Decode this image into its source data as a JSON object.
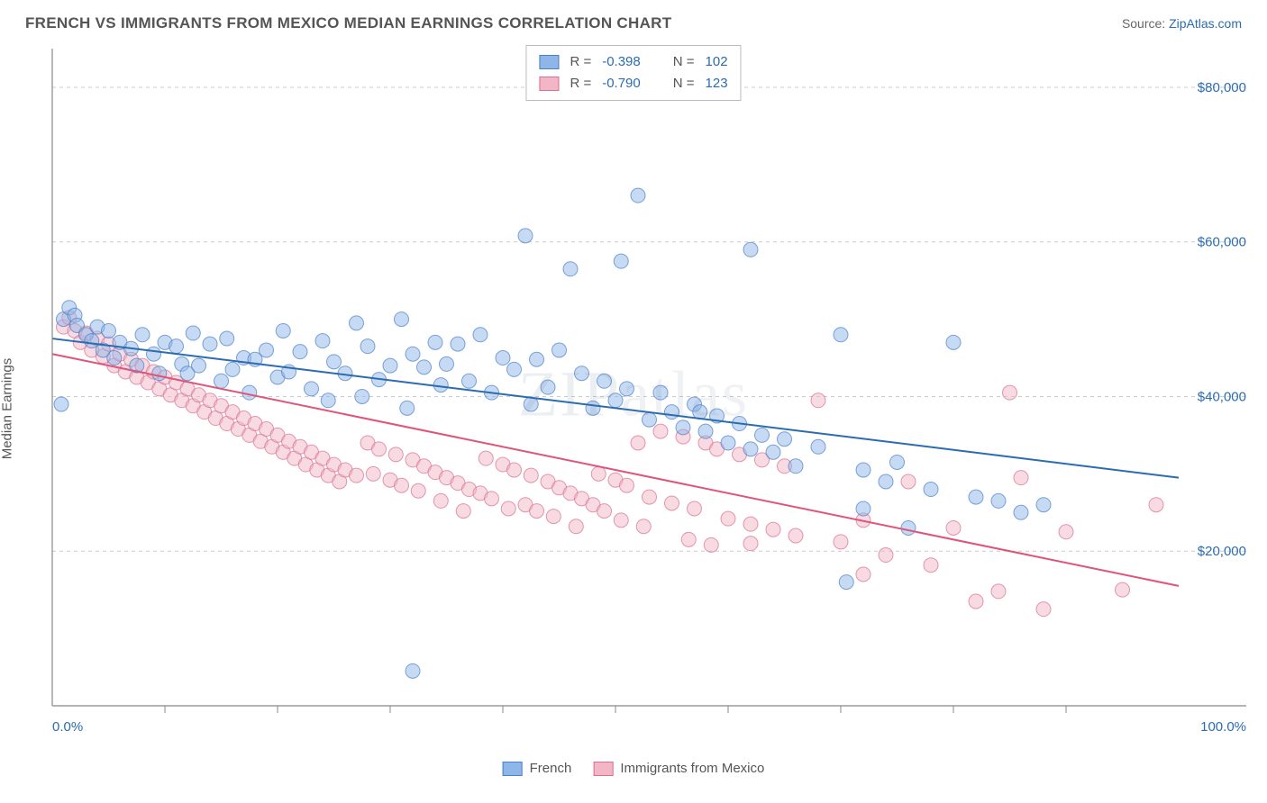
{
  "header": {
    "title": "FRENCH VS IMMIGRANTS FROM MEXICO MEDIAN EARNINGS CORRELATION CHART",
    "source_label": "Source:",
    "source_name": "ZipAtlas.com"
  },
  "watermark": {
    "part1": "ZIP",
    "part2": "atlas"
  },
  "chart": {
    "type": "scatter",
    "xlabel": null,
    "ylabel": "Median Earnings",
    "xlim": [
      0,
      100
    ],
    "ylim": [
      0,
      85000
    ],
    "x_axis_labels": {
      "left": "0.0%",
      "right": "100.0%"
    },
    "x_ticks_minor": [
      10,
      20,
      30,
      40,
      50,
      60,
      70,
      80,
      90
    ],
    "y_gridlines": [
      20000,
      40000,
      60000,
      80000
    ],
    "y_tick_labels": [
      "$20,000",
      "$40,000",
      "$60,000",
      "$80,000"
    ],
    "background_color": "#ffffff",
    "grid_color": "#cccccc",
    "axis_color": "#888888",
    "tick_label_color": "#2b6cb0",
    "axis_label_color": "#555555",
    "title_fontsize": 17,
    "label_fontsize": 15,
    "tick_fontsize": 15,
    "marker_radius": 8,
    "marker_opacity": 0.5,
    "line_width": 2,
    "series": [
      {
        "id": "french",
        "label": "French",
        "fill_color": "#8fb6e8",
        "stroke_color": "#4a7fc9",
        "line_color": "#2b6cb0",
        "R": "-0.398",
        "N": "102",
        "trend": {
          "x1": 0,
          "y1": 47500,
          "x2": 100,
          "y2": 29500
        },
        "points": [
          [
            1,
            50000
          ],
          [
            1.5,
            51500
          ],
          [
            2,
            50500
          ],
          [
            2.2,
            49200
          ],
          [
            0.8,
            39000
          ],
          [
            3,
            48000
          ],
          [
            3.5,
            47200
          ],
          [
            4,
            49000
          ],
          [
            4.5,
            46000
          ],
          [
            5,
            48500
          ],
          [
            5.5,
            45000
          ],
          [
            6,
            47000
          ],
          [
            7,
            46200
          ],
          [
            7.5,
            44000
          ],
          [
            8,
            48000
          ],
          [
            9,
            45500
          ],
          [
            9.5,
            43000
          ],
          [
            10,
            47000
          ],
          [
            11,
            46500
          ],
          [
            11.5,
            44200
          ],
          [
            12,
            43000
          ],
          [
            12.5,
            48200
          ],
          [
            13,
            44000
          ],
          [
            14,
            46800
          ],
          [
            15,
            42000
          ],
          [
            15.5,
            47500
          ],
          [
            16,
            43500
          ],
          [
            17,
            45000
          ],
          [
            17.5,
            40500
          ],
          [
            18,
            44800
          ],
          [
            19,
            46000
          ],
          [
            20,
            42500
          ],
          [
            20.5,
            48500
          ],
          [
            21,
            43200
          ],
          [
            22,
            45800
          ],
          [
            23,
            41000
          ],
          [
            24,
            47200
          ],
          [
            24.5,
            39500
          ],
          [
            25,
            44500
          ],
          [
            26,
            43000
          ],
          [
            27,
            49500
          ],
          [
            27.5,
            40000
          ],
          [
            28,
            46500
          ],
          [
            29,
            42200
          ],
          [
            30,
            44000
          ],
          [
            31,
            50000
          ],
          [
            31.5,
            38500
          ],
          [
            32,
            45500
          ],
          [
            33,
            43800
          ],
          [
            34,
            47000
          ],
          [
            34.5,
            41500
          ],
          [
            35,
            44200
          ],
          [
            36,
            46800
          ],
          [
            37,
            42000
          ],
          [
            38,
            48000
          ],
          [
            32,
            4500
          ],
          [
            39,
            40500
          ],
          [
            40,
            45000
          ],
          [
            41,
            43500
          ],
          [
            42,
            60800
          ],
          [
            42.5,
            39000
          ],
          [
            43,
            44800
          ],
          [
            44,
            41200
          ],
          [
            45,
            46000
          ],
          [
            46,
            56500
          ],
          [
            47,
            43000
          ],
          [
            48,
            38500
          ],
          [
            49,
            42000
          ],
          [
            50,
            39500
          ],
          [
            50.5,
            57500
          ],
          [
            51,
            41000
          ],
          [
            52,
            66000
          ],
          [
            53,
            37000
          ],
          [
            54,
            40500
          ],
          [
            55,
            38000
          ],
          [
            56,
            36000
          ],
          [
            57,
            39000
          ],
          [
            57.5,
            38000
          ],
          [
            58,
            35500
          ],
          [
            59,
            37500
          ],
          [
            60,
            34000
          ],
          [
            61,
            36500
          ],
          [
            62,
            33200
          ],
          [
            63,
            35000
          ],
          [
            64,
            32800
          ],
          [
            65,
            34500
          ],
          [
            66,
            31000
          ],
          [
            68,
            33500
          ],
          [
            70,
            48000
          ],
          [
            70.5,
            16000
          ],
          [
            72,
            30500
          ],
          [
            62,
            59000
          ],
          [
            74,
            29000
          ],
          [
            75,
            31500
          ],
          [
            76,
            23000
          ],
          [
            78,
            28000
          ],
          [
            80,
            47000
          ],
          [
            82,
            27000
          ],
          [
            84,
            26500
          ],
          [
            86,
            25000
          ],
          [
            88,
            26000
          ],
          [
            72,
            25500
          ]
        ]
      },
      {
        "id": "mexico",
        "label": "Immigrants from Mexico",
        "fill_color": "#f2b6c6",
        "stroke_color": "#d96f8e",
        "line_color": "#e0547a",
        "R": "-0.790",
        "N": "123",
        "trend": {
          "x1": 0,
          "y1": 45500,
          "x2": 100,
          "y2": 15500
        },
        "points": [
          [
            1,
            49000
          ],
          [
            1.5,
            50200
          ],
          [
            2,
            48500
          ],
          [
            2.5,
            47000
          ],
          [
            3,
            48200
          ],
          [
            3.5,
            46000
          ],
          [
            4,
            47500
          ],
          [
            4.5,
            45200
          ],
          [
            5,
            46800
          ],
          [
            5.5,
            44000
          ],
          [
            6,
            45500
          ],
          [
            6.5,
            43200
          ],
          [
            7,
            44800
          ],
          [
            7.5,
            42500
          ],
          [
            8,
            44000
          ],
          [
            8.5,
            41800
          ],
          [
            9,
            43200
          ],
          [
            9.5,
            41000
          ],
          [
            10,
            42500
          ],
          [
            10.5,
            40200
          ],
          [
            11,
            41800
          ],
          [
            11.5,
            39500
          ],
          [
            12,
            41000
          ],
          [
            12.5,
            38800
          ],
          [
            13,
            40200
          ],
          [
            13.5,
            38000
          ],
          [
            14,
            39500
          ],
          [
            14.5,
            37200
          ],
          [
            15,
            38800
          ],
          [
            15.5,
            36500
          ],
          [
            16,
            38000
          ],
          [
            16.5,
            35800
          ],
          [
            17,
            37200
          ],
          [
            17.5,
            35000
          ],
          [
            18,
            36500
          ],
          [
            18.5,
            34200
          ],
          [
            19,
            35800
          ],
          [
            19.5,
            33500
          ],
          [
            20,
            35000
          ],
          [
            20.5,
            32800
          ],
          [
            21,
            34200
          ],
          [
            21.5,
            32000
          ],
          [
            22,
            33500
          ],
          [
            22.5,
            31200
          ],
          [
            23,
            32800
          ],
          [
            23.5,
            30500
          ],
          [
            24,
            32000
          ],
          [
            24.5,
            29800
          ],
          [
            25,
            31200
          ],
          [
            25.5,
            29000
          ],
          [
            26,
            30500
          ],
          [
            27,
            29800
          ],
          [
            28,
            34000
          ],
          [
            28.5,
            30000
          ],
          [
            29,
            33200
          ],
          [
            30,
            29200
          ],
          [
            30.5,
            32500
          ],
          [
            31,
            28500
          ],
          [
            32,
            31800
          ],
          [
            32.5,
            27800
          ],
          [
            33,
            31000
          ],
          [
            34,
            30200
          ],
          [
            34.5,
            26500
          ],
          [
            35,
            29500
          ],
          [
            36,
            28800
          ],
          [
            36.5,
            25200
          ],
          [
            37,
            28000
          ],
          [
            38,
            27500
          ],
          [
            38.5,
            32000
          ],
          [
            39,
            26800
          ],
          [
            40,
            31200
          ],
          [
            40.5,
            25500
          ],
          [
            41,
            30500
          ],
          [
            42,
            26000
          ],
          [
            42.5,
            29800
          ],
          [
            43,
            25200
          ],
          [
            44,
            29000
          ],
          [
            44.5,
            24500
          ],
          [
            45,
            28200
          ],
          [
            46,
            27500
          ],
          [
            46.5,
            23200
          ],
          [
            47,
            26800
          ],
          [
            48,
            26000
          ],
          [
            48.5,
            30000
          ],
          [
            49,
            25200
          ],
          [
            50,
            29200
          ],
          [
            50.5,
            24000
          ],
          [
            51,
            28500
          ],
          [
            52,
            34000
          ],
          [
            52.5,
            23200
          ],
          [
            53,
            27000
          ],
          [
            54,
            35500
          ],
          [
            55,
            26200
          ],
          [
            56,
            34800
          ],
          [
            56.5,
            21500
          ],
          [
            57,
            25500
          ],
          [
            58,
            34000
          ],
          [
            58.5,
            20800
          ],
          [
            59,
            33200
          ],
          [
            60,
            24200
          ],
          [
            61,
            32500
          ],
          [
            62,
            23500
          ],
          [
            63,
            31800
          ],
          [
            64,
            22800
          ],
          [
            65,
            31000
          ],
          [
            66,
            22000
          ],
          [
            68,
            39500
          ],
          [
            70,
            21200
          ],
          [
            72,
            24000
          ],
          [
            74,
            19500
          ],
          [
            76,
            29000
          ],
          [
            78,
            18200
          ],
          [
            80,
            23000
          ],
          [
            82,
            13500
          ],
          [
            84,
            14800
          ],
          [
            86,
            29500
          ],
          [
            88,
            12500
          ],
          [
            90,
            22500
          ],
          [
            95,
            15000
          ],
          [
            98,
            26000
          ],
          [
            85,
            40500
          ],
          [
            72,
            17000
          ],
          [
            62,
            21000
          ]
        ]
      }
    ],
    "stat_legend": {
      "R_prefix": "R =",
      "N_prefix": "N ="
    },
    "bottom_legend_order": [
      "french",
      "mexico"
    ]
  }
}
